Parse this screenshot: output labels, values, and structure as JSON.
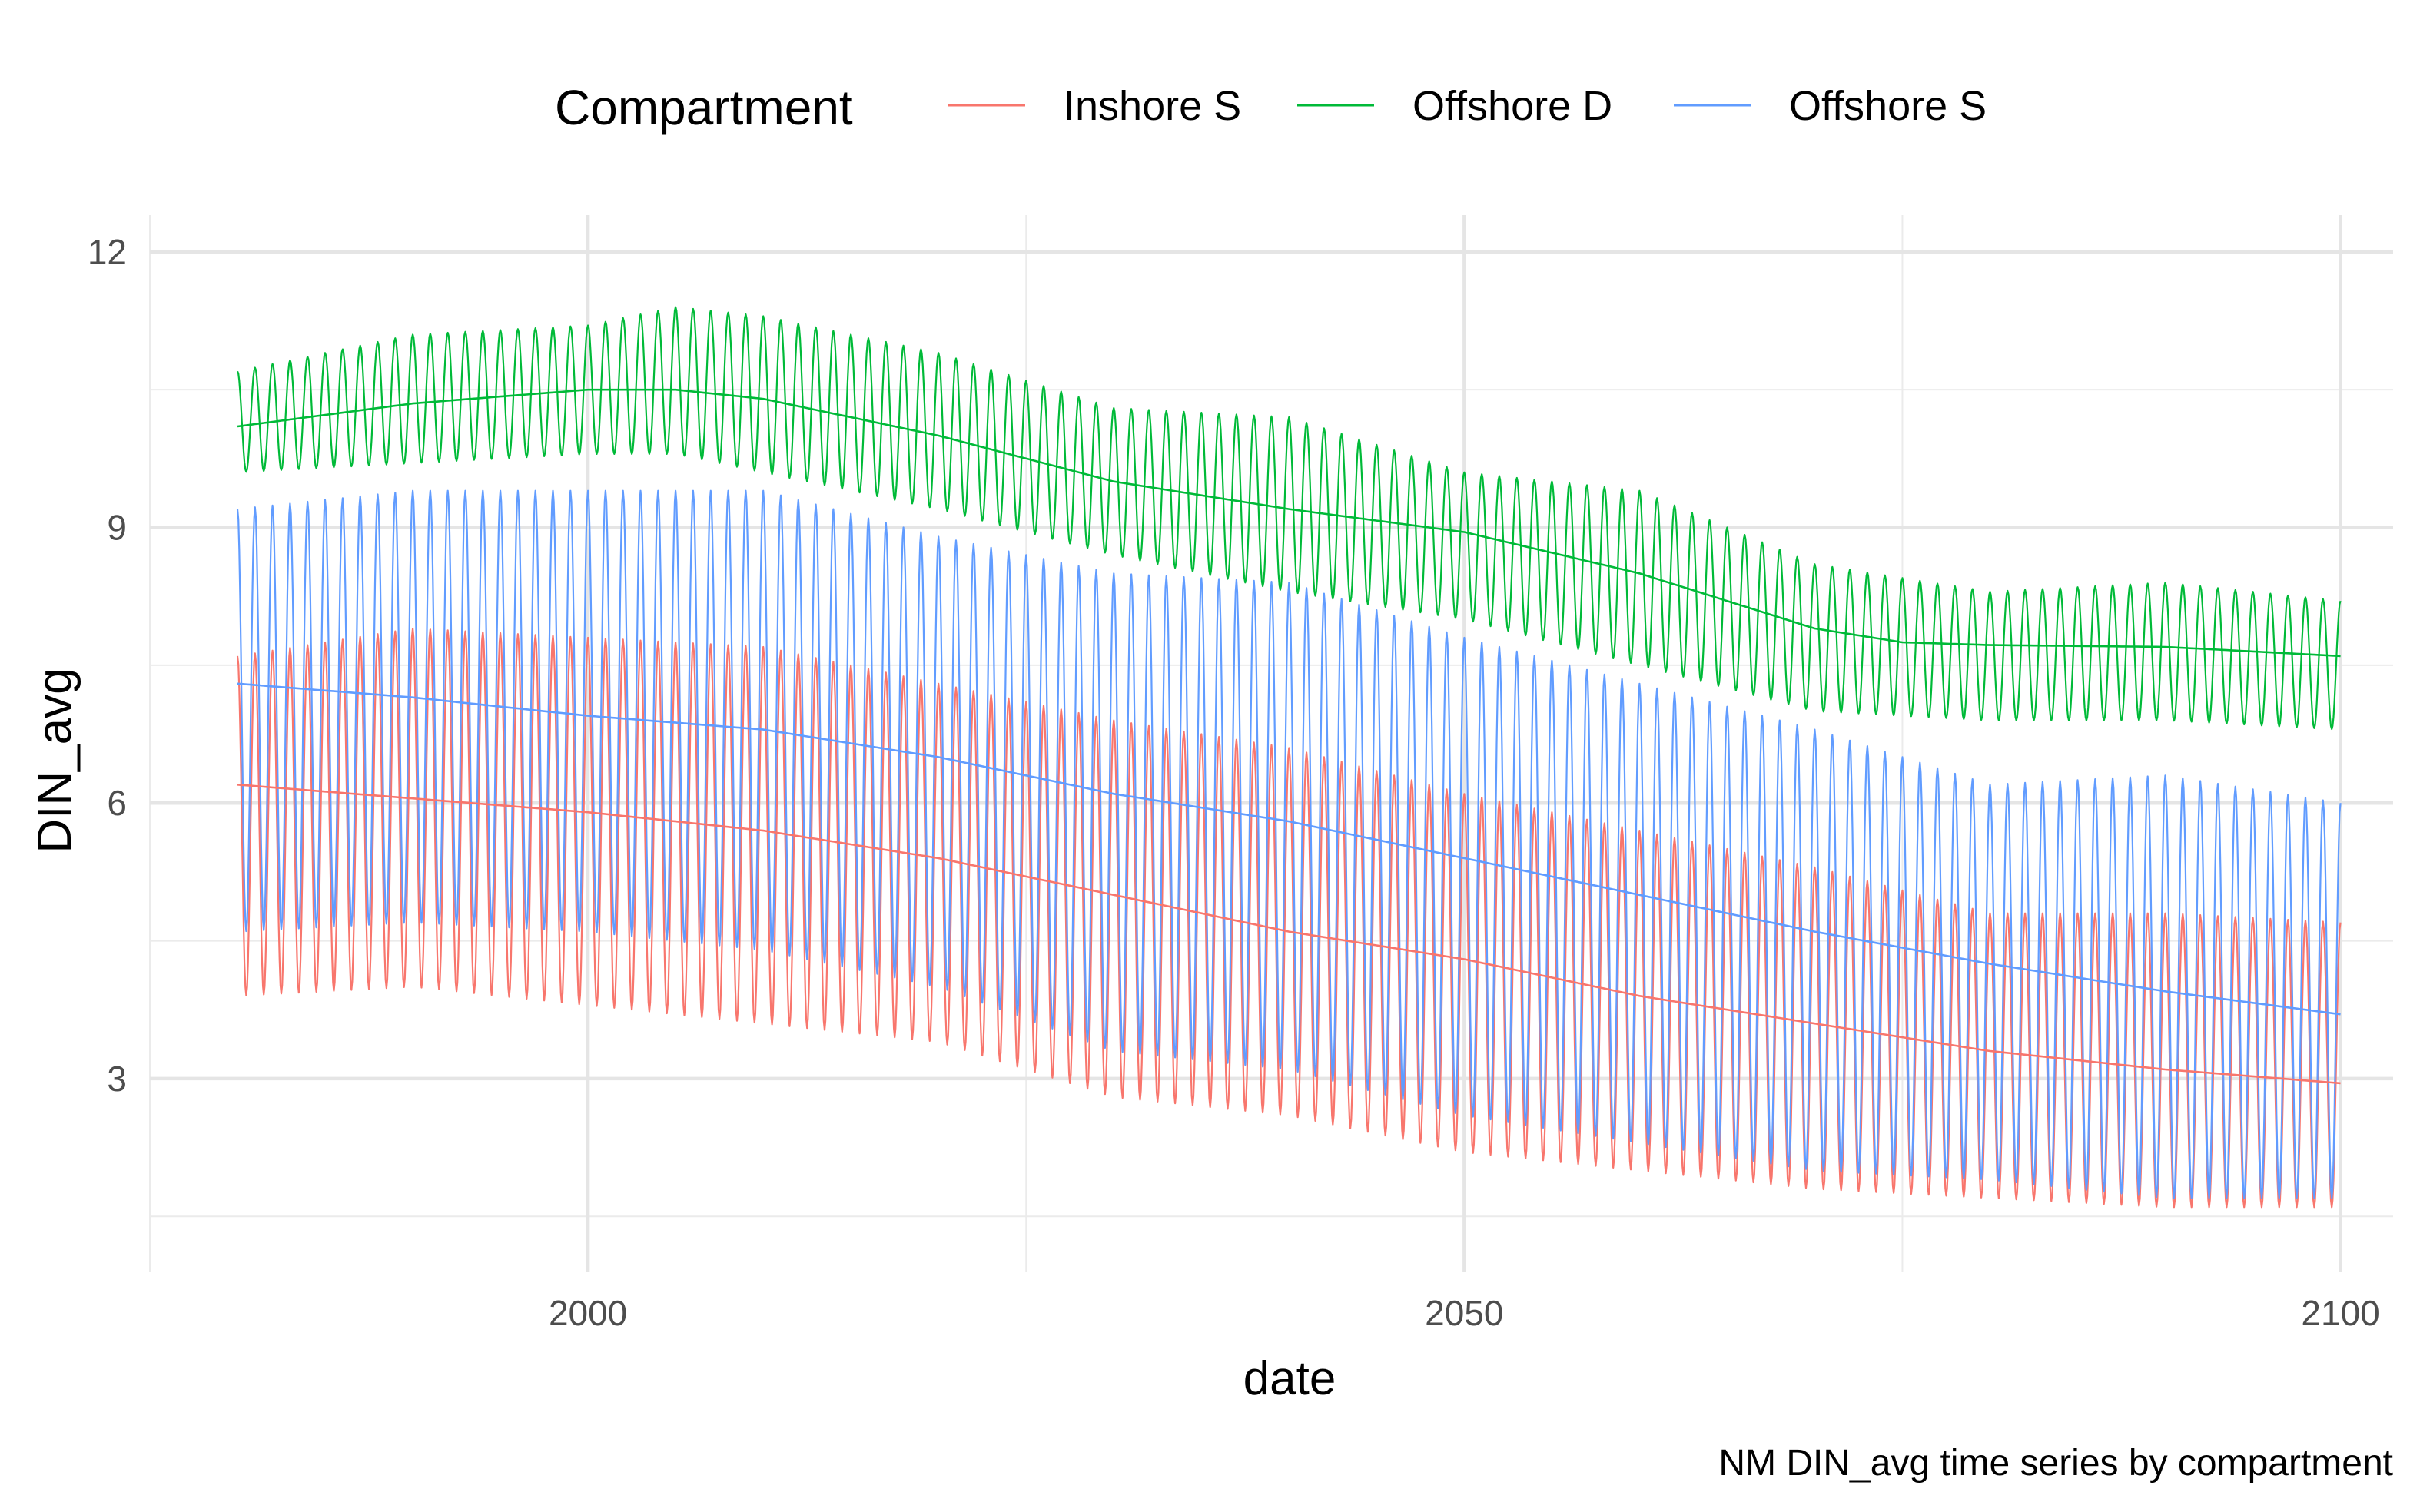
{
  "chart_data": {
    "type": "line",
    "caption": "NM DIN_avg time series by compartment",
    "xlabel": "date",
    "ylabel": "DIN_avg",
    "xlim": [
      1975,
      2103
    ],
    "ylim": [
      0.9,
      12.4
    ],
    "x_ticks": [
      2000,
      2050,
      2100
    ],
    "x_minor_ticks": [
      1975,
      2025,
      2075
    ],
    "y_ticks": [
      3,
      6,
      9,
      12
    ],
    "y_minor_ticks": [
      1.5,
      4.5,
      7.5,
      10.5
    ],
    "grid": true,
    "legend": {
      "title": "Compartment",
      "position": "top",
      "entries": [
        "Inshore S",
        "Offshore D",
        "Offshore S"
      ]
    },
    "series": [
      {
        "name": "Inshore S",
        "color": "#F8766D",
        "seasonal": true,
        "trend": {
          "x": [
            1980,
            2000,
            2010,
            2020,
            2030,
            2040,
            2050,
            2060,
            2070,
            2080,
            2090,
            2100
          ],
          "y": [
            6.2,
            5.9,
            5.7,
            5.4,
            5.0,
            4.6,
            4.3,
            3.9,
            3.6,
            3.3,
            3.1,
            2.95
          ]
        },
        "upper": {
          "x": [
            1980,
            1990,
            2000,
            2010,
            2020,
            2030,
            2040,
            2050,
            2060,
            2070,
            2080,
            2090,
            2100
          ],
          "y": [
            7.6,
            7.9,
            7.8,
            7.7,
            7.3,
            6.9,
            6.6,
            6.1,
            5.7,
            5.3,
            4.8,
            4.8,
            4.7
          ]
        },
        "lower": {
          "x": [
            1980,
            1990,
            2000,
            2010,
            2020,
            2030,
            2040,
            2050,
            2060,
            2070,
            2080,
            2090,
            2100
          ],
          "y": [
            3.9,
            4.0,
            3.8,
            3.6,
            3.4,
            2.8,
            2.6,
            2.2,
            2.0,
            1.8,
            1.7,
            1.6,
            1.6
          ]
        }
      },
      {
        "name": "Offshore D",
        "color": "#00BA38",
        "seasonal": true,
        "trend": {
          "x": [
            1980,
            1990,
            2000,
            2005,
            2010,
            2020,
            2030,
            2040,
            2050,
            2060,
            2070,
            2075,
            2080,
            2090,
            2100
          ],
          "y": [
            10.1,
            10.35,
            10.5,
            10.5,
            10.4,
            10.0,
            9.5,
            9.2,
            8.95,
            8.5,
            7.9,
            7.75,
            7.72,
            7.7,
            7.6
          ]
        },
        "upper": {
          "x": [
            1980,
            1990,
            2000,
            2005,
            2010,
            2020,
            2030,
            2040,
            2050,
            2060,
            2070,
            2080,
            2090,
            2100
          ],
          "y": [
            10.7,
            11.1,
            11.2,
            11.4,
            11.3,
            10.9,
            10.3,
            10.2,
            9.6,
            9.4,
            8.6,
            8.3,
            8.4,
            8.2
          ]
        },
        "lower": {
          "x": [
            1980,
            1990,
            2000,
            2005,
            2010,
            2020,
            2030,
            2040,
            2050,
            2060,
            2070,
            2080,
            2090,
            2100
          ],
          "y": [
            9.6,
            9.7,
            9.8,
            9.8,
            9.6,
            9.2,
            8.7,
            8.3,
            8.0,
            7.5,
            7.0,
            6.9,
            6.9,
            6.8
          ]
        }
      },
      {
        "name": "Offshore S",
        "color": "#619CFF",
        "seasonal": true,
        "trend": {
          "x": [
            1980,
            1990,
            2000,
            2010,
            2020,
            2030,
            2040,
            2050,
            2060,
            2070,
            2080,
            2090,
            2100
          ],
          "y": [
            7.3,
            7.15,
            6.95,
            6.8,
            6.5,
            6.1,
            5.8,
            5.4,
            5.0,
            4.6,
            4.25,
            3.95,
            3.7
          ]
        },
        "upper": {
          "x": [
            1980,
            1990,
            2000,
            2010,
            2020,
            2030,
            2040,
            2050,
            2060,
            2070,
            2080,
            2090,
            2100
          ],
          "y": [
            9.2,
            9.4,
            9.4,
            9.4,
            8.9,
            8.5,
            8.4,
            7.8,
            7.3,
            6.8,
            6.2,
            6.3,
            6.0
          ]
        },
        "lower": {
          "x": [
            1980,
            1990,
            2000,
            2010,
            2020,
            2030,
            2040,
            2050,
            2060,
            2070,
            2080,
            2090,
            2100
          ],
          "y": [
            4.6,
            4.7,
            4.6,
            4.4,
            4.0,
            3.3,
            3.1,
            2.6,
            2.3,
            2.0,
            1.9,
            1.7,
            1.7
          ]
        }
      }
    ]
  }
}
